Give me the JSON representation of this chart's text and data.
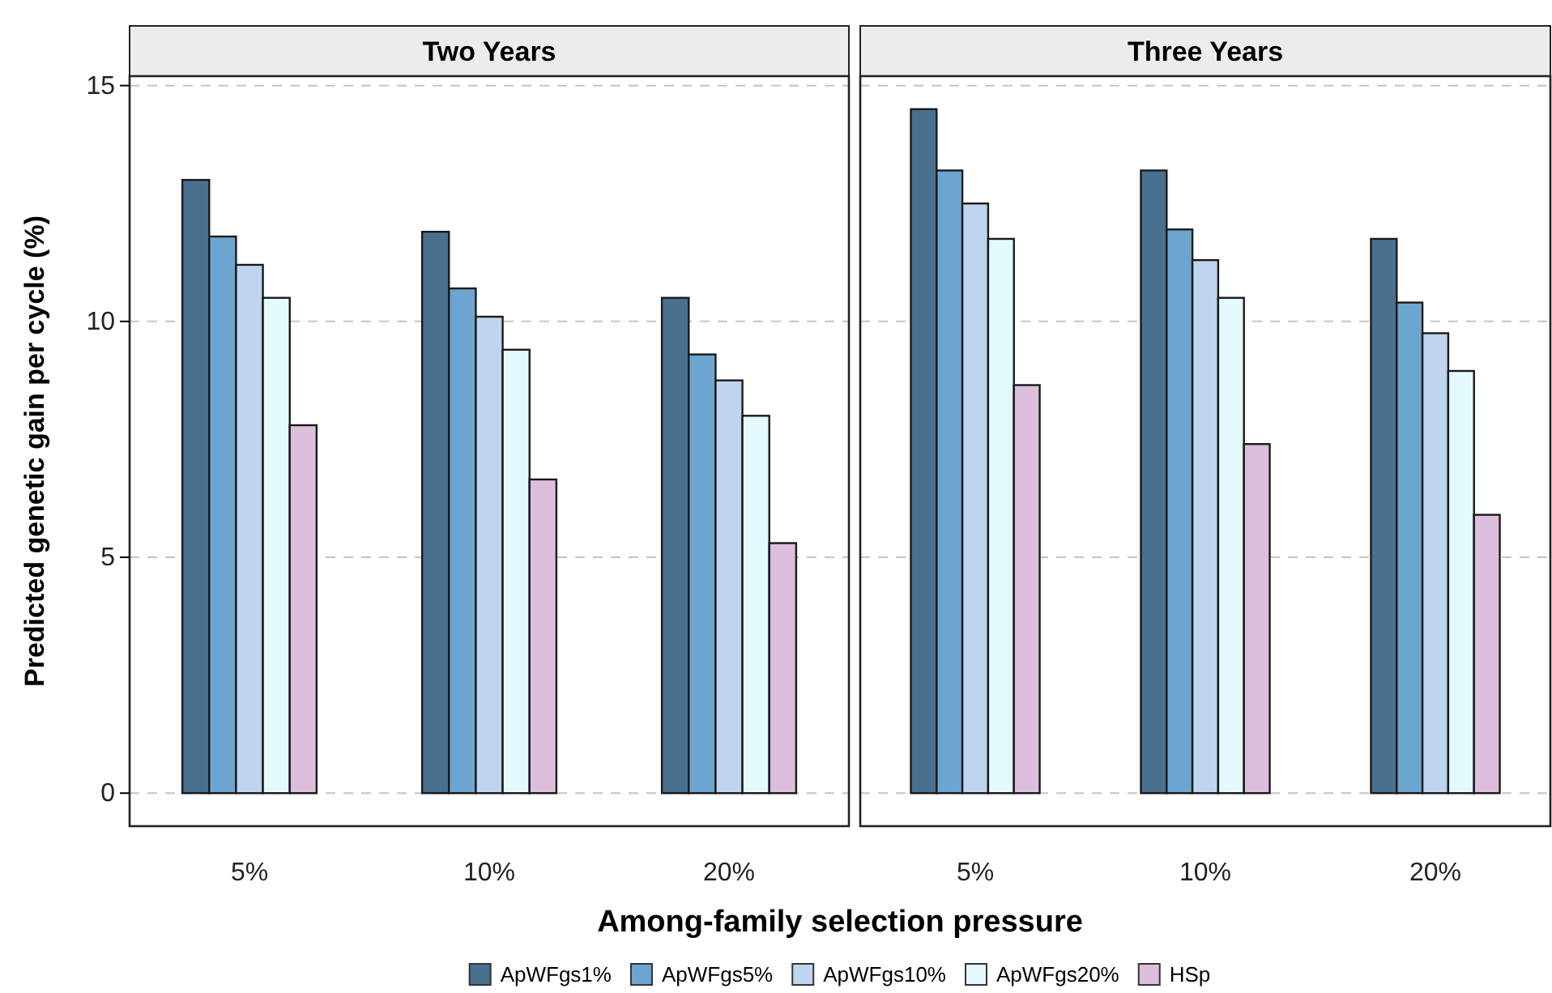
{
  "chart_data": [
    {
      "type": "bar",
      "title": "Two Years",
      "xlabel": "Among-family selection pressure",
      "ylabel": "Predicted genetic gain per cycle (%)",
      "categories": [
        "5%",
        "10%",
        "20%"
      ],
      "series": [
        {
          "name": "ApWFgs1%",
          "color": "#4a7090",
          "values": [
            13.0,
            11.9,
            10.5
          ]
        },
        {
          "name": "ApWFgs5%",
          "color": "#6ca6d0",
          "values": [
            11.8,
            10.7,
            9.3
          ]
        },
        {
          "name": "ApWFgs10%",
          "color": "#bfd4ee",
          "values": [
            11.2,
            10.1,
            8.75
          ]
        },
        {
          "name": "ApWFgs20%",
          "color": "#e4f9fb",
          "values": [
            10.5,
            9.4,
            8.0
          ]
        },
        {
          "name": "HSp",
          "color": "#dcbfdc",
          "values": [
            7.8,
            6.65,
            5.3
          ]
        }
      ],
      "ylim": [
        -0.7,
        15.2
      ],
      "yticks": [
        0,
        5,
        10,
        15
      ],
      "grid": "y",
      "legend": "bottom"
    },
    {
      "type": "bar",
      "title": "Three Years",
      "categories": [
        "5%",
        "10%",
        "20%"
      ],
      "series": [
        {
          "color": "#4a7090",
          "values": [
            14.5,
            13.2,
            11.75
          ]
        },
        {
          "color": "#6ca6d0",
          "values": [
            13.2,
            11.95,
            10.4
          ]
        },
        {
          "color": "#bfd4ee",
          "values": [
            12.5,
            11.3,
            9.75
          ]
        },
        {
          "color": "#e4f9fb",
          "values": [
            11.75,
            10.5,
            8.95
          ]
        },
        {
          "color": "#dcbfdc",
          "values": [
            8.65,
            7.4,
            5.9
          ]
        }
      ],
      "ylim": [
        -0.7,
        15.2
      ],
      "yticks": [
        0,
        5,
        10,
        15
      ],
      "grid": "y",
      "tick_labels": "x"
    }
  ]
}
